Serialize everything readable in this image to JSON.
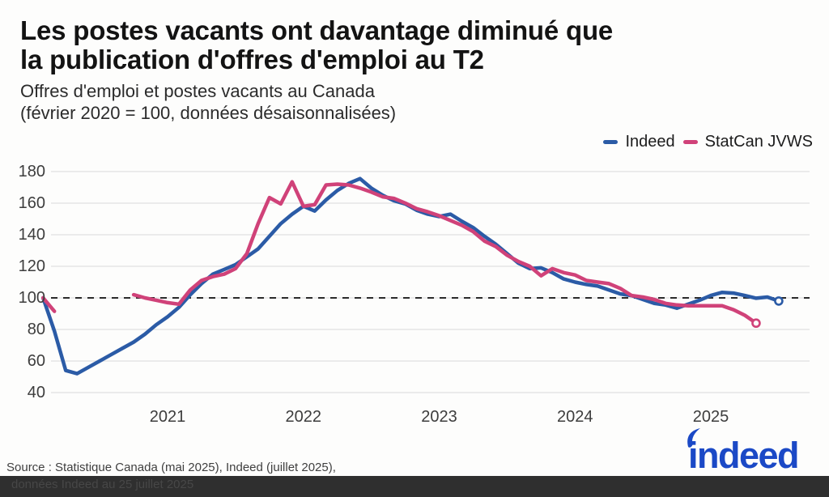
{
  "header": {
    "title_line1": "Les postes vacants ont davantage diminué que",
    "title_line2": "la publication d'offres d'emploi au T2",
    "subtitle_line1": "Offres d'emploi et postes vacants au Canada",
    "subtitle_line2": "(février 2020 = 100, données désaisonnalisées)"
  },
  "legend": {
    "items": [
      {
        "label": "Indeed",
        "color": "#2b5ba6"
      },
      {
        "label": "StatCan JVWS",
        "color": "#d04279"
      }
    ]
  },
  "colors": {
    "indeed_line": "#2b5ba6",
    "statcan_line": "#d04279",
    "gridline": "#e5e5e5",
    "baseline_dash": "#2b2b2b",
    "logo_blue": "#1b49c6",
    "bottom_bar": "#2f2f2f"
  },
  "chart_data": {
    "type": "line",
    "title": "Offres d'emploi et postes vacants au Canada",
    "note": "février 2020 = 100, données désaisonnalisées",
    "x_start": "2020-02",
    "x_end": "2025-07",
    "x_frequency": "monthly",
    "baseline": 100,
    "ylim": [
      40,
      180
    ],
    "y_ticks": [
      180,
      160,
      140,
      120,
      100,
      80,
      60,
      40
    ],
    "x_ticks": [
      {
        "label": "2021",
        "month_index": 11
      },
      {
        "label": "2022",
        "month_index": 23
      },
      {
        "label": "2023",
        "month_index": 35
      },
      {
        "label": "2024",
        "month_index": 47
      },
      {
        "label": "2025",
        "month_index": 59
      }
    ],
    "series": [
      {
        "name": "Indeed",
        "color": "#2b5ba6",
        "values": [
          100,
          79,
          54,
          52,
          56,
          60,
          64,
          68,
          72,
          77,
          83,
          88,
          94,
          102,
          109,
          115,
          118,
          121,
          126,
          131,
          139,
          147,
          153,
          158,
          155,
          162,
          168,
          172.5,
          175.5,
          169.5,
          165,
          161.5,
          159.5,
          155.5,
          153,
          151.5,
          153,
          148.5,
          144.5,
          139,
          134,
          128,
          122,
          118.5,
          119,
          116,
          112,
          110,
          108.5,
          107.5,
          105,
          102.5,
          101.5,
          99,
          96.5,
          95.5,
          93.5,
          96,
          98.5,
          101.5,
          103.5,
          103,
          101.5,
          99.8,
          100.5,
          98
        ]
      },
      {
        "name": "StatCan JVWS",
        "color": "#d04279",
        "values": [
          100,
          91.5,
          null,
          null,
          null,
          null,
          null,
          null,
          102,
          100,
          98.5,
          97,
          96,
          105,
          111,
          113.5,
          115,
          118.5,
          128,
          147,
          163.5,
          159.5,
          173.5,
          158,
          159,
          171.5,
          172,
          171.5,
          169.5,
          167,
          164,
          163,
          160,
          156.5,
          154.5,
          152,
          149,
          146,
          142,
          136,
          132.5,
          127,
          123,
          120,
          114,
          118.5,
          116,
          114.5,
          111,
          110,
          109,
          106,
          101.5,
          100.5,
          99,
          96.5,
          95.5,
          95,
          95,
          95,
          95,
          92.5,
          89,
          84,
          null,
          null
        ]
      }
    ],
    "legend_position": "top-right",
    "grid": "horizontal-only"
  },
  "footer": {
    "source_line1": "Source : Statistique Canada (mai 2025), Indeed (juillet 2025),",
    "source_line2_obscured": "données Indeed au 25 juillet 2025",
    "logo_text": "indeed"
  }
}
